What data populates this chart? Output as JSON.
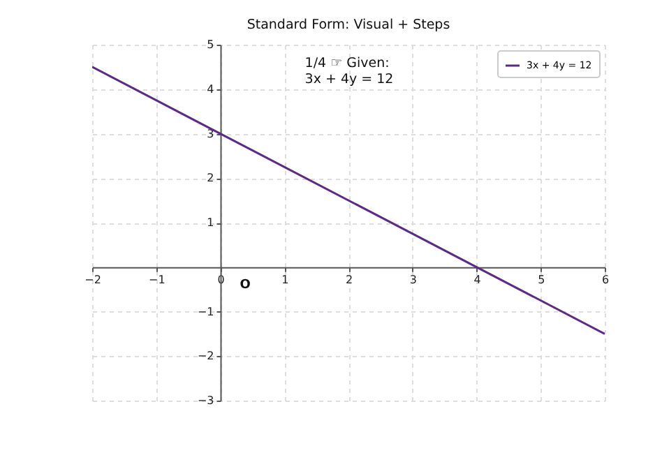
{
  "chart_data": {
    "type": "line",
    "title": "Standard Form: Visual + Steps",
    "x": [
      -2,
      6
    ],
    "series": [
      {
        "name": "3x + 4y = 12",
        "color": "#5b2a86",
        "values": [
          4.5,
          -1.5
        ]
      }
    ],
    "xlim": [
      -2,
      6
    ],
    "xticks": [
      -2,
      -1,
      0,
      1,
      2,
      3,
      4,
      5,
      6
    ],
    "ylim": [
      -3,
      5
    ],
    "yticks": [
      -3,
      -2,
      -1,
      1,
      2,
      3,
      4,
      5
    ],
    "annotations": [
      "1/4 ☞  Given:\n3x + 4y = 12",
      "O"
    ],
    "grid": true,
    "legend": "top right",
    "line_style": "solid"
  }
}
